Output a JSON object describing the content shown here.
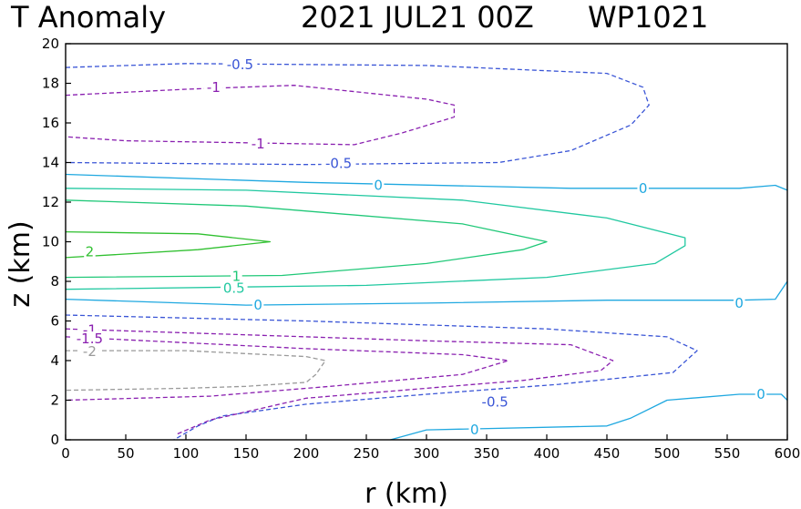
{
  "chart_data": {
    "type": "contour",
    "title": {
      "variable": "T Anomaly",
      "time": "2021 JUL21 00Z",
      "storm_id": "WP1021"
    },
    "xlabel": "r (km)",
    "ylabel": "z (km)",
    "xlim": [
      0,
      600
    ],
    "ylim": [
      0,
      20
    ],
    "xticks": [
      0,
      50,
      100,
      150,
      200,
      250,
      300,
      350,
      400,
      450,
      500,
      550,
      600
    ],
    "yticks": [
      0,
      2,
      4,
      6,
      8,
      10,
      12,
      14,
      16,
      18,
      20
    ],
    "colors": {
      "neg_0_5": "#3a55d6",
      "neg_1": "#8a20b0",
      "neg_1_5": "#8a20b0",
      "neg_2": "#9a9a9a",
      "zero": "#1fa8e0",
      "pos_0_5": "#20c8a0",
      "pos_1": "#20c878",
      "pos_2": "#30c030"
    },
    "contours": [
      {
        "level": -0.5,
        "label": "-0.5",
        "style": "neg_0_5",
        "dashed": true,
        "points": [
          [
            0,
            18.8
          ],
          [
            100,
            19.0
          ],
          [
            300,
            18.9
          ],
          [
            450,
            18.5
          ],
          [
            480,
            17.8
          ],
          [
            485,
            16.9
          ],
          [
            470,
            15.9
          ],
          [
            420,
            14.6
          ],
          [
            360,
            14.0
          ],
          [
            200,
            13.9
          ],
          [
            0,
            14.0
          ]
        ]
      },
      {
        "level": -1,
        "label": "-1",
        "style": "neg_1",
        "dashed": true,
        "points": [
          [
            0,
            17.4
          ],
          [
            100,
            17.7
          ],
          [
            190,
            17.9
          ],
          [
            300,
            17.2
          ],
          [
            323,
            16.9
          ],
          [
            323,
            16.3
          ],
          [
            280,
            15.5
          ],
          [
            240,
            14.9
          ],
          [
            150,
            15.0
          ],
          [
            50,
            15.1
          ],
          [
            0,
            15.3
          ]
        ]
      },
      {
        "level": 0,
        "label": "0",
        "style": "zero",
        "dashed": false,
        "points": [
          [
            0,
            13.4
          ],
          [
            200,
            13.0
          ],
          [
            420,
            12.7
          ],
          [
            560,
            12.7
          ],
          [
            590,
            12.85
          ],
          [
            600,
            12.6
          ]
        ]
      },
      {
        "level": 0.5,
        "label": "0.5",
        "style": "pos_0_5",
        "dashed": false,
        "points": [
          [
            0,
            12.7
          ],
          [
            150,
            12.6
          ],
          [
            330,
            12.1
          ],
          [
            450,
            11.2
          ],
          [
            515,
            10.2
          ],
          [
            515,
            9.8
          ],
          [
            490,
            8.9
          ],
          [
            400,
            8.2
          ],
          [
            250,
            7.8
          ],
          [
            0,
            7.6
          ]
        ]
      },
      {
        "level": 1,
        "label": "1",
        "style": "pos_1",
        "dashed": false,
        "points": [
          [
            0,
            12.1
          ],
          [
            150,
            11.8
          ],
          [
            330,
            10.9
          ],
          [
            400,
            10.0
          ],
          [
            380,
            9.6
          ],
          [
            300,
            8.9
          ],
          [
            180,
            8.3
          ],
          [
            0,
            8.2
          ]
        ]
      },
      {
        "level": 2,
        "label": "2",
        "style": "pos_2",
        "dashed": false,
        "points": [
          [
            0,
            10.5
          ],
          [
            110,
            10.4
          ],
          [
            170,
            10.0
          ],
          [
            110,
            9.6
          ],
          [
            0,
            9.2
          ]
        ]
      },
      {
        "level": 0,
        "label": "0",
        "style": "zero",
        "dashed": false,
        "points": [
          [
            0,
            7.1
          ],
          [
            150,
            6.8
          ],
          [
            300,
            6.9
          ],
          [
            450,
            7.05
          ],
          [
            560,
            7.05
          ],
          [
            590,
            7.1
          ],
          [
            600,
            8.0
          ]
        ]
      },
      {
        "level": -0.5,
        "label": "-0.5",
        "style": "neg_0_5",
        "dashed": true,
        "points": [
          [
            0,
            6.3
          ],
          [
            200,
            6.0
          ],
          [
            400,
            5.6
          ],
          [
            500,
            5.2
          ],
          [
            525,
            4.5
          ],
          [
            505,
            3.4
          ],
          [
            410,
            2.8
          ],
          [
            300,
            2.3
          ],
          [
            200,
            1.8
          ],
          [
            130,
            1.2
          ],
          [
            110,
            0.7
          ],
          [
            90,
            0
          ]
        ]
      },
      {
        "level": -1,
        "label": "-1",
        "style": "neg_1",
        "dashed": true,
        "points": [
          [
            0,
            5.6
          ],
          [
            150,
            5.3
          ],
          [
            300,
            5.0
          ],
          [
            420,
            4.8
          ],
          [
            455,
            4.0
          ],
          [
            445,
            3.5
          ],
          [
            380,
            3.0
          ],
          [
            300,
            2.6
          ],
          [
            200,
            2.1
          ],
          [
            120,
            1.0
          ],
          [
            93,
            0.3
          ]
        ]
      },
      {
        "level": -1.5,
        "label": "-1.5",
        "style": "neg_1_5",
        "dashed": true,
        "points": [
          [
            0,
            5.2
          ],
          [
            100,
            4.9
          ],
          [
            200,
            4.6
          ],
          [
            330,
            4.3
          ],
          [
            368,
            4.0
          ],
          [
            330,
            3.3
          ],
          [
            220,
            2.7
          ],
          [
            120,
            2.2
          ],
          [
            0,
            2.0
          ]
        ]
      },
      {
        "level": -2,
        "label": "-2",
        "style": "neg_2",
        "dashed": true,
        "points": [
          [
            0,
            4.5
          ],
          [
            100,
            4.5
          ],
          [
            200,
            4.2
          ],
          [
            216,
            4.0
          ],
          [
            208,
            3.3
          ],
          [
            200,
            2.9
          ],
          [
            150,
            2.7
          ],
          [
            100,
            2.6
          ],
          [
            0,
            2.5
          ]
        ]
      },
      {
        "level": 0,
        "label": "0",
        "style": "zero",
        "dashed": false,
        "points": [
          [
            270,
            0
          ],
          [
            300,
            0.5
          ],
          [
            450,
            0.7
          ],
          [
            470,
            1.1
          ],
          [
            500,
            2.0
          ],
          [
            560,
            2.3
          ],
          [
            595,
            2.3
          ],
          [
            600,
            2.0
          ]
        ]
      }
    ],
    "labels": [
      {
        "text": "-0.5",
        "x": 145,
        "y": 18.95,
        "style": "neg_0_5"
      },
      {
        "text": "-1",
        "x": 123,
        "y": 17.8,
        "style": "neg_1"
      },
      {
        "text": "-1",
        "x": 160,
        "y": 14.95,
        "style": "neg_1"
      },
      {
        "text": "-0.5",
        "x": 227,
        "y": 13.95,
        "style": "neg_0_5"
      },
      {
        "text": "0",
        "x": 260,
        "y": 12.85,
        "style": "zero"
      },
      {
        "text": "0",
        "x": 480,
        "y": 12.7,
        "style": "zero"
      },
      {
        "text": "1",
        "x": 142,
        "y": 8.25,
        "style": "pos_1"
      },
      {
        "text": "0.5",
        "x": 140,
        "y": 7.65,
        "style": "pos_0_5"
      },
      {
        "text": "2",
        "x": 20,
        "y": 9.5,
        "style": "pos_2"
      },
      {
        "text": "0",
        "x": 160,
        "y": 6.8,
        "style": "zero"
      },
      {
        "text": "0",
        "x": 560,
        "y": 6.9,
        "style": "zero"
      },
      {
        "text": "-1",
        "x": 20,
        "y": 5.55,
        "style": "neg_1"
      },
      {
        "text": "-1.5",
        "x": 20,
        "y": 5.1,
        "style": "neg_1_5"
      },
      {
        "text": "-2",
        "x": 20,
        "y": 4.45,
        "style": "neg_2"
      },
      {
        "text": "-0.5",
        "x": 357,
        "y": 1.9,
        "style": "neg_0_5"
      },
      {
        "text": "0",
        "x": 340,
        "y": 0.5,
        "style": "zero"
      },
      {
        "text": "0",
        "x": 578,
        "y": 2.3,
        "style": "zero"
      }
    ]
  }
}
